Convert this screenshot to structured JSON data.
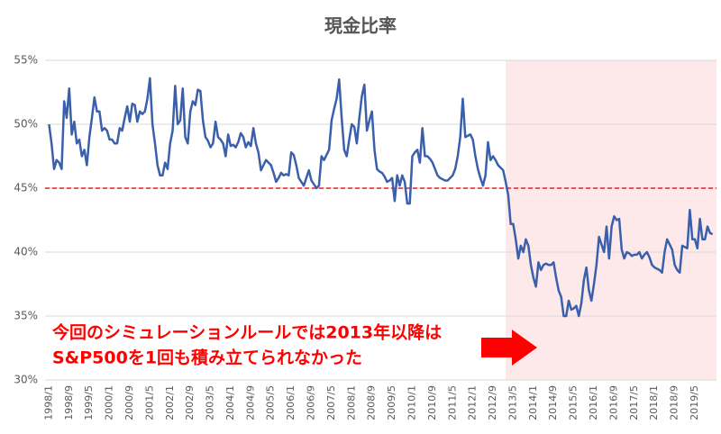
{
  "chart_data": {
    "type": "line",
    "title": "現金比率",
    "categories": [
      "1998/1",
      null,
      null,
      null,
      null,
      null,
      null,
      null,
      "1998/9",
      null,
      null,
      null,
      null,
      null,
      null,
      null,
      "1999/5",
      null,
      null,
      null,
      null,
      null,
      null,
      null,
      "2000/1",
      null,
      null,
      null,
      null,
      null,
      null,
      null,
      "2000/9",
      null,
      null,
      null,
      null,
      null,
      null,
      null,
      "2001/5",
      null,
      null,
      null,
      null,
      null,
      null,
      null,
      "2002/1",
      null,
      null,
      null,
      null,
      null,
      null,
      null,
      "2002/9",
      null,
      null,
      null,
      null,
      null,
      null,
      null,
      "2003/5",
      null,
      null,
      null,
      null,
      null,
      null,
      null,
      "2004/1",
      null,
      null,
      null,
      null,
      null,
      null,
      null,
      "2004/9",
      null,
      null,
      null,
      null,
      null,
      null,
      null,
      "2005/5",
      null,
      null,
      null,
      null,
      null,
      null,
      null,
      "2006/1",
      null,
      null,
      null,
      null,
      null,
      null,
      null,
      "2006/9",
      null,
      null,
      null,
      null,
      null,
      null,
      null,
      "2007/5",
      null,
      null,
      null,
      null,
      null,
      null,
      null,
      "2008/1",
      null,
      null,
      null,
      null,
      null,
      null,
      null,
      "2008/9",
      null,
      null,
      null,
      null,
      null,
      null,
      null,
      "2009/5",
      null,
      null,
      null,
      null,
      null,
      null,
      null,
      "2010/1",
      null,
      null,
      null,
      null,
      null,
      null,
      null,
      "2010/9",
      null,
      null,
      null,
      null,
      null,
      null,
      null,
      "2011/5",
      null,
      null,
      null,
      null,
      null,
      null,
      null,
      "2012/1",
      null,
      null,
      null,
      null,
      null,
      null,
      null,
      "2012/9",
      null,
      null,
      null,
      null,
      null,
      null,
      null,
      "2013/5",
      null,
      null,
      null,
      null,
      null,
      null,
      null,
      "2014/1",
      null,
      null,
      null,
      null,
      null,
      null,
      null,
      "2014/9",
      null,
      null,
      null,
      null,
      null,
      null,
      null,
      "2015/5",
      null,
      null,
      null,
      null,
      null,
      null,
      null,
      "2016/1",
      null,
      null,
      null,
      null,
      null,
      null,
      null,
      "2016/9",
      null,
      null,
      null,
      null,
      null,
      null,
      null,
      "2017/5",
      null,
      null,
      null,
      null,
      null,
      null,
      null,
      "2018/1",
      null,
      null,
      null,
      null,
      null,
      null,
      null,
      "2018/9",
      null,
      null,
      null,
      null,
      null,
      null,
      null,
      "2019/5",
      null,
      null,
      null,
      null,
      null,
      null,
      null
    ],
    "series": [
      {
        "color": "#3a5fab",
        "values": [
          50,
          48.5,
          46.5,
          47.2,
          47,
          46.5,
          51.8,
          50.5,
          52.8,
          49.2,
          50.2,
          48.5,
          48.8,
          47.5,
          48,
          46.8,
          49,
          50.5,
          52.1,
          51,
          51,
          49.5,
          49.7,
          49.5,
          48.8,
          48.8,
          48.5,
          48.5,
          49.7,
          49.5,
          50.5,
          51.4,
          50.2,
          51.6,
          51.5,
          50.2,
          51,
          50.8,
          51,
          52,
          53.6,
          50,
          48.5,
          46.8,
          46,
          46,
          47,
          46.5,
          48.5,
          49.5,
          53,
          50,
          50.3,
          52.8,
          49,
          48.5,
          51,
          51.8,
          51.5,
          52.7,
          52.6,
          50.3,
          49,
          48.7,
          48.2,
          48.5,
          50.2,
          49,
          48.8,
          48.5,
          47.5,
          49.2,
          48.3,
          48.4,
          48.2,
          48.6,
          49.3,
          49,
          48.2,
          48.6,
          48.3,
          49.7,
          48.5,
          47.8,
          46.4,
          46.8,
          47.2,
          47,
          46.8,
          46.2,
          45.5,
          45.8,
          46.2,
          46,
          46.1,
          46,
          47.8,
          47.6,
          46.8,
          45.8,
          45.5,
          45.2,
          45.8,
          46.4,
          45.6,
          45.3,
          45,
          45.2,
          47.5,
          47.2,
          47.6,
          48,
          50.3,
          51.2,
          52,
          53.5,
          50.5,
          48,
          47.5,
          48.8,
          50,
          49.8,
          48.5,
          50.5,
          52.2,
          53.1,
          49.5,
          50.3,
          51,
          48,
          46.5,
          46.3,
          46.2,
          45.9,
          45.5,
          45.6,
          45.8,
          44,
          46,
          45.2,
          46,
          45.5,
          43.8,
          43.8,
          47.5,
          47.8,
          48,
          47,
          49.7,
          47.5,
          47.5,
          47.3,
          47,
          46.5,
          46,
          45.8,
          45.7,
          45.6,
          45.6,
          45.8,
          46,
          46.5,
          47.5,
          49,
          52,
          49,
          49.1,
          49.2,
          48.8,
          47.5,
          46.5,
          45.8,
          45.2,
          46,
          48.6,
          47.2,
          47.5,
          47.2,
          46.8,
          46.6,
          46.4,
          45.5,
          44.5,
          42.2,
          42.2,
          41,
          39.5,
          40.5,
          40,
          41,
          40.5,
          39,
          38,
          37.3,
          39.2,
          38.6,
          39,
          39.1,
          39,
          39,
          39.2,
          38,
          37,
          36.5,
          35,
          35,
          36.2,
          35.5,
          35.6,
          35.8,
          35,
          36,
          37.8,
          38.8,
          37,
          36.2,
          37.5,
          39,
          41.2,
          40.6,
          40,
          42,
          39.5,
          42,
          42.8,
          42.5,
          42.6,
          40.2,
          39.5,
          40,
          39.9,
          39.7,
          39.8,
          39.8,
          40,
          39.5,
          39.8,
          40,
          39.6,
          39,
          38.8,
          38.7,
          38.6,
          38.4,
          40,
          41,
          40.6,
          40.2,
          39,
          38.6,
          38.4,
          40.5,
          40.4,
          40.3,
          43.3,
          41,
          41,
          40.3,
          42.6,
          41,
          41,
          42,
          41.5,
          41.4
        ]
      }
    ],
    "ylim": [
      30,
      55
    ],
    "yticks": [
      {
        "value": 30,
        "label": "30%"
      },
      {
        "value": 35,
        "label": "35%"
      },
      {
        "value": 40,
        "label": "40%"
      },
      {
        "value": 45,
        "label": "45%"
      },
      {
        "value": 50,
        "label": "50%"
      },
      {
        "value": 55,
        "label": "55%"
      }
    ],
    "grid": true,
    "reference_line": {
      "value": 45,
      "color": "#d9262a"
    },
    "annotations": [
      "今回のシミュレーションルールでは2013年以降は",
      "S&P500を1回も積み立てられなかった"
    ]
  }
}
